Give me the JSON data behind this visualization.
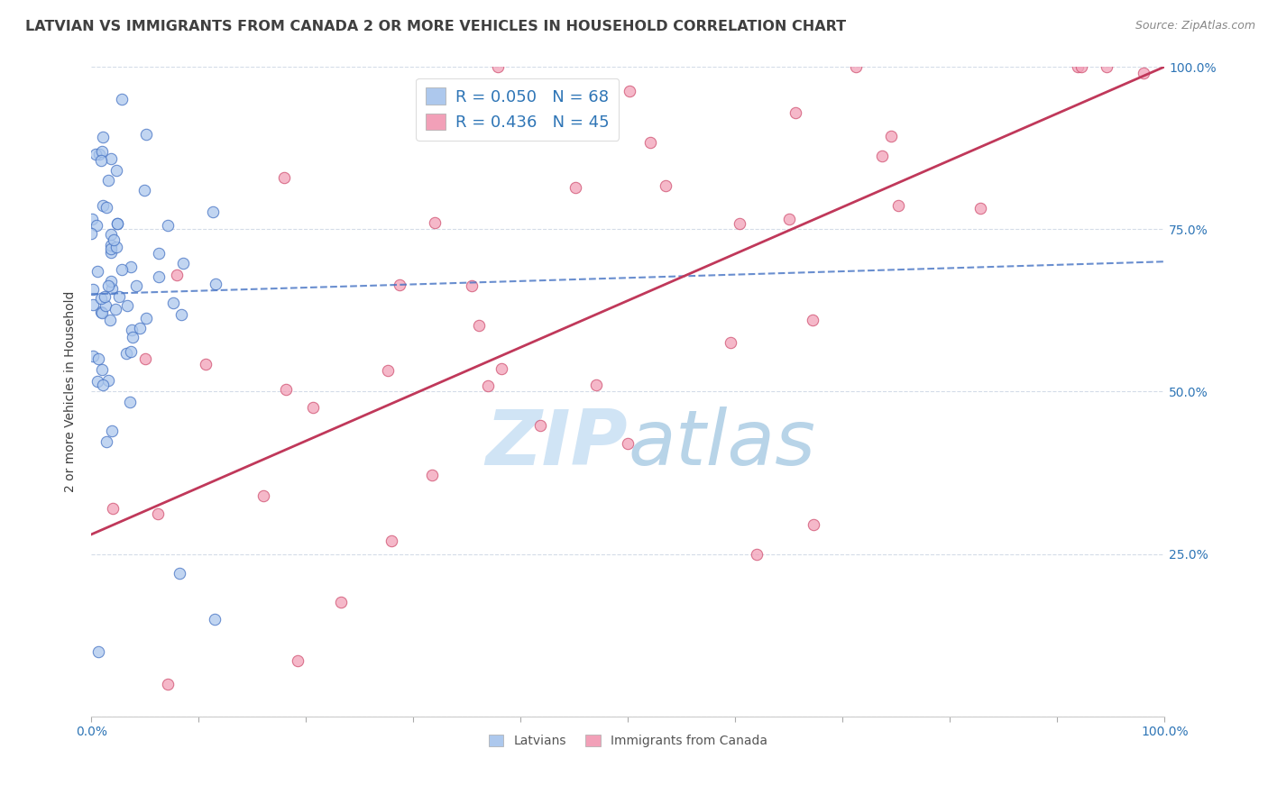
{
  "title": "LATVIAN VS IMMIGRANTS FROM CANADA 2 OR MORE VEHICLES IN HOUSEHOLD CORRELATION CHART",
  "source_text": "Source: ZipAtlas.com",
  "ylabel": "2 or more Vehicles in Household",
  "latvian_R": 0.05,
  "latvian_N": 68,
  "canada_R": 0.436,
  "canada_N": 45,
  "latvian_color": "#adc8ed",
  "canada_color": "#f2a0b8",
  "latvian_line_color": "#4472c4",
  "canada_line_color": "#c0385a",
  "watermark_color": "#d0e4f5",
  "title_color": "#404040",
  "axis_label_color": "#2e75b6",
  "grid_color": "#d4dce8",
  "background_color": "#ffffff",
  "xmin": 0.0,
  "xmax": 100.0,
  "ymin": 0.0,
  "ymax": 100.0,
  "marker_size": 80,
  "latvian_line_intercept": 65.0,
  "latvian_line_slope": 0.05,
  "canada_line_intercept": 28.0,
  "canada_line_slope": 0.72
}
